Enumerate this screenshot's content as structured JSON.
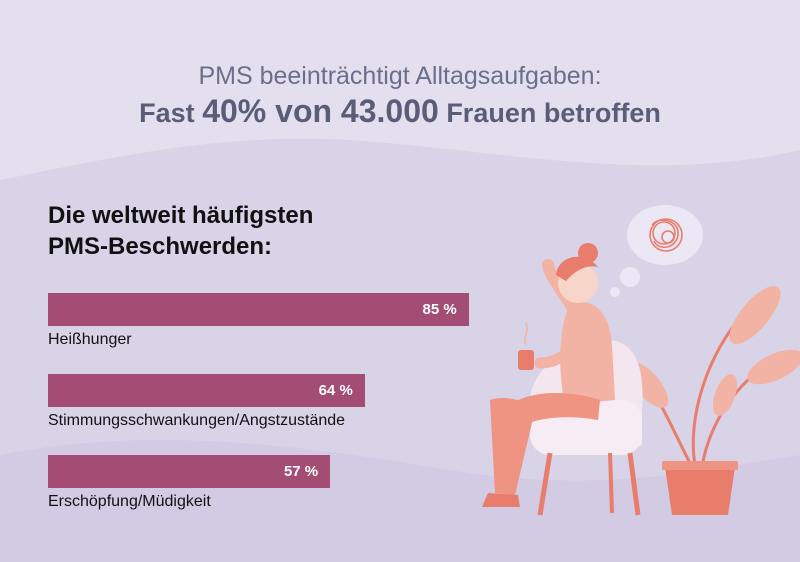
{
  "header": {
    "subtitle": "PMS beeinträchtigt Alltagsaufgaben:",
    "title_part1": "Fast",
    "title_part2": "40% von 43.000",
    "title_part3": "Frauen betroffen"
  },
  "chart_data": {
    "type": "bar",
    "orientation": "horizontal",
    "title_lines": [
      "Die weltweit häufigsten",
      "PMS-Beschwerden:"
    ],
    "categories": [
      "Heißhunger",
      "Stimmungsschwankungen/Angstzustände",
      "Erschöpfung/Müdigkeit"
    ],
    "values": [
      85,
      64,
      57
    ],
    "value_labels": [
      "85 %",
      "64 %",
      "57 %"
    ],
    "bar_color": "#a34c74",
    "xlim": [
      0,
      100
    ]
  },
  "colors": {
    "background": "#ddd8ea",
    "accent": "#e87d6c"
  }
}
